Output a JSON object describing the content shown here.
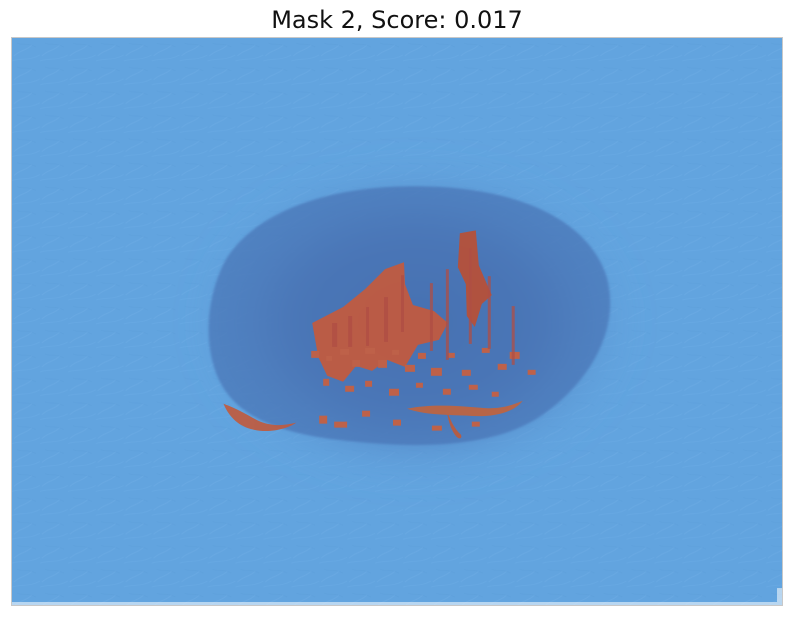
{
  "figure": {
    "title": "Mask 2, Score: 0.017"
  },
  "image": {
    "subject": "microscope-like skin lesion image with blue segmentation overlay",
    "colors": {
      "background_overlay": "#62a4df",
      "lesion_shadow": "#4f79b9",
      "lesion_core": "#426aa8",
      "mask_orange": "#c45a3d",
      "mask_red": "#b84b3b",
      "frame_border": "#c8c8c8"
    }
  }
}
